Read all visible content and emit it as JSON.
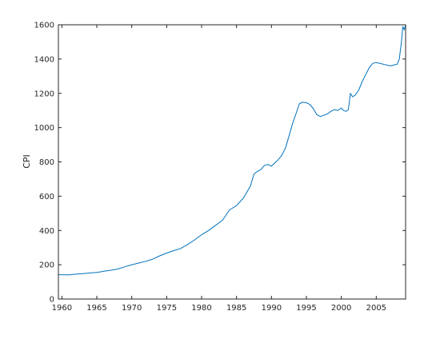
{
  "chart_data": {
    "type": "line",
    "title": "",
    "xlabel": "",
    "ylabel": "CPI",
    "xlim": [
      1959.5,
      2009.2
    ],
    "ylim": [
      0,
      1600
    ],
    "xticks": [
      1960,
      1965,
      1970,
      1975,
      1980,
      1985,
      1990,
      1995,
      2000,
      2005
    ],
    "yticks": [
      0,
      200,
      400,
      600,
      800,
      1000,
      1200,
      1400,
      1600
    ],
    "grid": false,
    "legend": "none",
    "line_color": "#0072BD",
    "series": [
      {
        "x": [
          1959.5,
          1961,
          1962,
          1963,
          1964,
          1965,
          1966,
          1967,
          1968,
          1969,
          1970,
          1971,
          1972,
          1973,
          1974,
          1975,
          1976,
          1977,
          1978,
          1979,
          1980,
          1981,
          1982,
          1983,
          1984,
          1985,
          1986,
          1986.5,
          1987,
          1987.5,
          1988,
          1988.5,
          1989,
          1989.5,
          1990,
          1990.5,
          1991,
          1991.5,
          1992,
          1992.5,
          1993,
          1993.5,
          1994,
          1994.5,
          1995,
          1995.5,
          1996,
          1996.5,
          1997,
          1997.5,
          1998,
          1998.5,
          1999,
          1999.5,
          2000,
          2000.3,
          2000.7,
          2001,
          2001.3,
          2001.6,
          2002,
          2002.5,
          2003,
          2003.5,
          2004,
          2004.5,
          2005,
          2005.5,
          2006,
          2006.5,
          2007,
          2007.5,
          2008,
          2008.3,
          2008.6,
          2008.8,
          2009,
          2009.2
        ],
        "y": [
          142,
          141,
          145,
          148,
          152,
          155,
          162,
          168,
          175,
          188,
          200,
          210,
          220,
          233,
          252,
          268,
          282,
          295,
          318,
          345,
          375,
          400,
          430,
          460,
          520,
          545,
          590,
          625,
          660,
          730,
          745,
          755,
          780,
          785,
          775,
          795,
          815,
          840,
          880,
          950,
          1020,
          1080,
          1140,
          1148,
          1145,
          1135,
          1110,
          1075,
          1065,
          1072,
          1080,
          1095,
          1105,
          1100,
          1115,
          1100,
          1095,
          1105,
          1200,
          1180,
          1190,
          1220,
          1270,
          1310,
          1350,
          1375,
          1380,
          1375,
          1370,
          1365,
          1360,
          1365,
          1370,
          1400,
          1500,
          1590,
          1570,
          1600
        ]
      }
    ]
  }
}
